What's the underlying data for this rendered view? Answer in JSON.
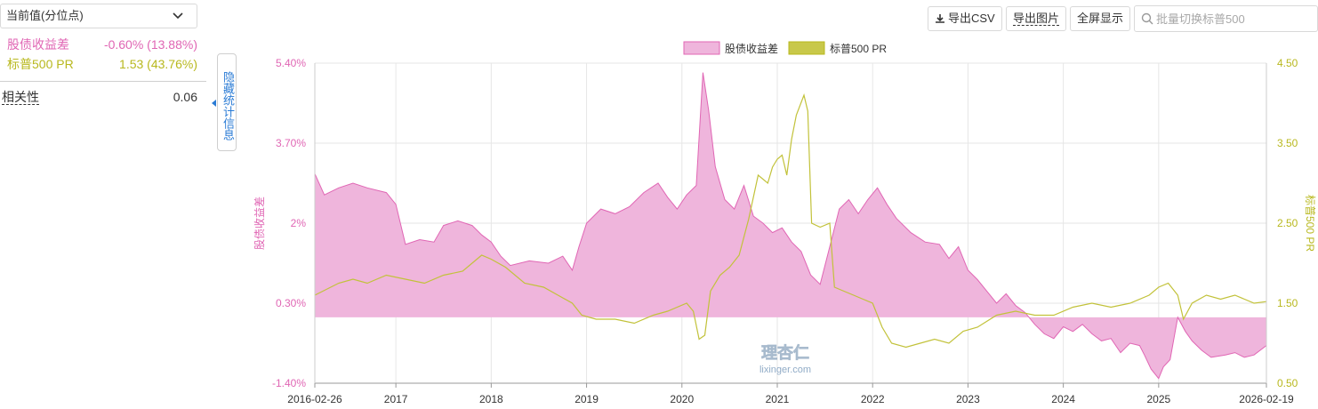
{
  "panel": {
    "selector_label": "当前值(分位点)",
    "stats": [
      {
        "name": "股债收益差",
        "value": "-0.60% (13.88%)",
        "color": "#e066b4"
      },
      {
        "name": "标普500 PR",
        "value": "1.53 (43.76%)",
        "color": "#b8b81e"
      }
    ],
    "correlation_label": "相关性",
    "correlation_value": "0.06",
    "toggle_label": "隐藏统计信息"
  },
  "toolbar": {
    "export_csv": "导出CSV",
    "export_image": "导出图片",
    "fullscreen": "全屏显示",
    "search_placeholder": "批量切换标普500"
  },
  "watermark": {
    "text": "理杏仁",
    "url": "lixinger.com"
  },
  "chart_data": {
    "type": "area",
    "legend_position": "top",
    "grid": true,
    "x_start": "2016-02-26",
    "x_end": "2026-02-19",
    "x_tick_labels": [
      "2016-02-26",
      "2017",
      "2018",
      "2019",
      "2020",
      "2021",
      "2022",
      "2023",
      "2024",
      "2025",
      "2026-02-19"
    ],
    "x_tick_years": [
      2016.15,
      2017,
      2018,
      2019,
      2020,
      2021,
      2022,
      2023,
      2024,
      2025,
      2026.13
    ],
    "y_left": {
      "label": "股债收益差",
      "ticks": [
        "5.40%",
        "3.70%",
        "2%",
        "0.30%",
        "-1.40%"
      ],
      "range": [
        -1.4,
        5.4
      ],
      "color": "#e066b4"
    },
    "y_right": {
      "label": "标普500 PR",
      "ticks": [
        "4.50",
        "3.50",
        "2.50",
        "1.50",
        "0.50"
      ],
      "range": [
        0.5,
        4.5
      ],
      "color": "#b8b81e"
    },
    "series": [
      {
        "name": "股债收益差",
        "type": "area",
        "color": "#e066b4",
        "fill": "#efb5dc",
        "points": [
          [
            2016.15,
            3.05
          ],
          [
            2016.25,
            2.6
          ],
          [
            2016.4,
            2.75
          ],
          [
            2016.55,
            2.85
          ],
          [
            2016.7,
            2.75
          ],
          [
            2016.9,
            2.65
          ],
          [
            2017.0,
            2.4
          ],
          [
            2017.1,
            1.55
          ],
          [
            2017.25,
            1.65
          ],
          [
            2017.4,
            1.6
          ],
          [
            2017.5,
            1.95
          ],
          [
            2017.65,
            2.05
          ],
          [
            2017.8,
            1.95
          ],
          [
            2017.9,
            1.75
          ],
          [
            2018.0,
            1.6
          ],
          [
            2018.1,
            1.3
          ],
          [
            2018.2,
            1.1
          ],
          [
            2018.4,
            1.2
          ],
          [
            2018.6,
            1.15
          ],
          [
            2018.75,
            1.3
          ],
          [
            2018.85,
            1.0
          ],
          [
            2018.92,
            1.5
          ],
          [
            2019.0,
            2.0
          ],
          [
            2019.15,
            2.3
          ],
          [
            2019.3,
            2.2
          ],
          [
            2019.45,
            2.35
          ],
          [
            2019.6,
            2.65
          ],
          [
            2019.75,
            2.85
          ],
          [
            2019.85,
            2.55
          ],
          [
            2019.95,
            2.3
          ],
          [
            2020.05,
            2.6
          ],
          [
            2020.15,
            2.8
          ],
          [
            2020.22,
            5.2
          ],
          [
            2020.28,
            4.4
          ],
          [
            2020.35,
            3.2
          ],
          [
            2020.45,
            2.5
          ],
          [
            2020.55,
            2.3
          ],
          [
            2020.65,
            2.8
          ],
          [
            2020.75,
            2.15
          ],
          [
            2020.85,
            2.0
          ],
          [
            2020.95,
            1.8
          ],
          [
            2021.05,
            1.9
          ],
          [
            2021.15,
            1.6
          ],
          [
            2021.25,
            1.4
          ],
          [
            2021.35,
            0.9
          ],
          [
            2021.45,
            0.7
          ],
          [
            2021.55,
            1.5
          ],
          [
            2021.65,
            2.3
          ],
          [
            2021.75,
            2.5
          ],
          [
            2021.85,
            2.2
          ],
          [
            2021.95,
            2.5
          ],
          [
            2022.05,
            2.75
          ],
          [
            2022.15,
            2.4
          ],
          [
            2022.25,
            2.1
          ],
          [
            2022.4,
            1.8
          ],
          [
            2022.55,
            1.6
          ],
          [
            2022.7,
            1.55
          ],
          [
            2022.8,
            1.25
          ],
          [
            2022.9,
            1.5
          ],
          [
            2023.0,
            1.0
          ],
          [
            2023.1,
            0.8
          ],
          [
            2023.2,
            0.55
          ],
          [
            2023.3,
            0.3
          ],
          [
            2023.4,
            0.5
          ],
          [
            2023.5,
            0.25
          ],
          [
            2023.6,
            0.1
          ],
          [
            2023.7,
            -0.15
          ],
          [
            2023.8,
            -0.35
          ],
          [
            2023.9,
            -0.45
          ],
          [
            2024.0,
            -0.2
          ],
          [
            2024.1,
            -0.3
          ],
          [
            2024.2,
            -0.15
          ],
          [
            2024.3,
            -0.35
          ],
          [
            2024.4,
            -0.5
          ],
          [
            2024.5,
            -0.45
          ],
          [
            2024.6,
            -0.75
          ],
          [
            2024.7,
            -0.55
          ],
          [
            2024.8,
            -0.6
          ],
          [
            2024.85,
            -0.8
          ],
          [
            2024.92,
            -1.1
          ],
          [
            2025.0,
            -1.3
          ],
          [
            2025.05,
            -1.05
          ],
          [
            2025.12,
            -0.9
          ],
          [
            2025.2,
            0.0
          ],
          [
            2025.28,
            -0.3
          ],
          [
            2025.35,
            -0.5
          ],
          [
            2025.45,
            -0.7
          ],
          [
            2025.55,
            -0.85
          ],
          [
            2025.7,
            -0.8
          ],
          [
            2025.8,
            -0.75
          ],
          [
            2025.9,
            -0.85
          ],
          [
            2026.0,
            -0.8
          ],
          [
            2026.13,
            -0.6
          ]
        ]
      },
      {
        "name": "标普500 PR",
        "type": "line",
        "color": "#c2c23a",
        "points": [
          [
            2016.15,
            1.6
          ],
          [
            2016.4,
            1.75
          ],
          [
            2016.55,
            1.8
          ],
          [
            2016.7,
            1.75
          ],
          [
            2016.9,
            1.85
          ],
          [
            2017.1,
            1.8
          ],
          [
            2017.3,
            1.75
          ],
          [
            2017.5,
            1.85
          ],
          [
            2017.7,
            1.9
          ],
          [
            2017.9,
            2.1
          ],
          [
            2018.0,
            2.05
          ],
          [
            2018.15,
            1.95
          ],
          [
            2018.35,
            1.75
          ],
          [
            2018.55,
            1.7
          ],
          [
            2018.7,
            1.6
          ],
          [
            2018.85,
            1.5
          ],
          [
            2018.95,
            1.35
          ],
          [
            2019.1,
            1.3
          ],
          [
            2019.3,
            1.3
          ],
          [
            2019.5,
            1.25
          ],
          [
            2019.7,
            1.35
          ],
          [
            2019.85,
            1.4
          ],
          [
            2019.95,
            1.45
          ],
          [
            2020.05,
            1.5
          ],
          [
            2020.12,
            1.4
          ],
          [
            2020.18,
            1.05
          ],
          [
            2020.24,
            1.1
          ],
          [
            2020.3,
            1.65
          ],
          [
            2020.4,
            1.85
          ],
          [
            2020.5,
            1.95
          ],
          [
            2020.6,
            2.1
          ],
          [
            2020.7,
            2.55
          ],
          [
            2020.8,
            3.1
          ],
          [
            2020.9,
            3.0
          ],
          [
            2020.95,
            3.2
          ],
          [
            2021.0,
            3.3
          ],
          [
            2021.05,
            3.35
          ],
          [
            2021.1,
            3.1
          ],
          [
            2021.15,
            3.55
          ],
          [
            2021.2,
            3.85
          ],
          [
            2021.28,
            4.1
          ],
          [
            2021.32,
            3.9
          ],
          [
            2021.36,
            2.5
          ],
          [
            2021.45,
            2.45
          ],
          [
            2021.55,
            2.5
          ],
          [
            2021.6,
            1.7
          ],
          [
            2021.7,
            1.65
          ],
          [
            2021.8,
            1.6
          ],
          [
            2021.9,
            1.55
          ],
          [
            2022.0,
            1.5
          ],
          [
            2022.1,
            1.2
          ],
          [
            2022.2,
            1.0
          ],
          [
            2022.35,
            0.95
          ],
          [
            2022.5,
            1.0
          ],
          [
            2022.65,
            1.05
          ],
          [
            2022.8,
            1.0
          ],
          [
            2022.95,
            1.15
          ],
          [
            2023.1,
            1.2
          ],
          [
            2023.3,
            1.35
          ],
          [
            2023.5,
            1.4
          ],
          [
            2023.7,
            1.35
          ],
          [
            2023.9,
            1.35
          ],
          [
            2024.1,
            1.45
          ],
          [
            2024.3,
            1.5
          ],
          [
            2024.5,
            1.45
          ],
          [
            2024.7,
            1.5
          ],
          [
            2024.9,
            1.6
          ],
          [
            2025.0,
            1.7
          ],
          [
            2025.1,
            1.75
          ],
          [
            2025.2,
            1.6
          ],
          [
            2025.26,
            1.3
          ],
          [
            2025.35,
            1.5
          ],
          [
            2025.5,
            1.6
          ],
          [
            2025.65,
            1.55
          ],
          [
            2025.8,
            1.6
          ],
          [
            2026.0,
            1.5
          ],
          [
            2026.13,
            1.52
          ]
        ]
      }
    ]
  }
}
